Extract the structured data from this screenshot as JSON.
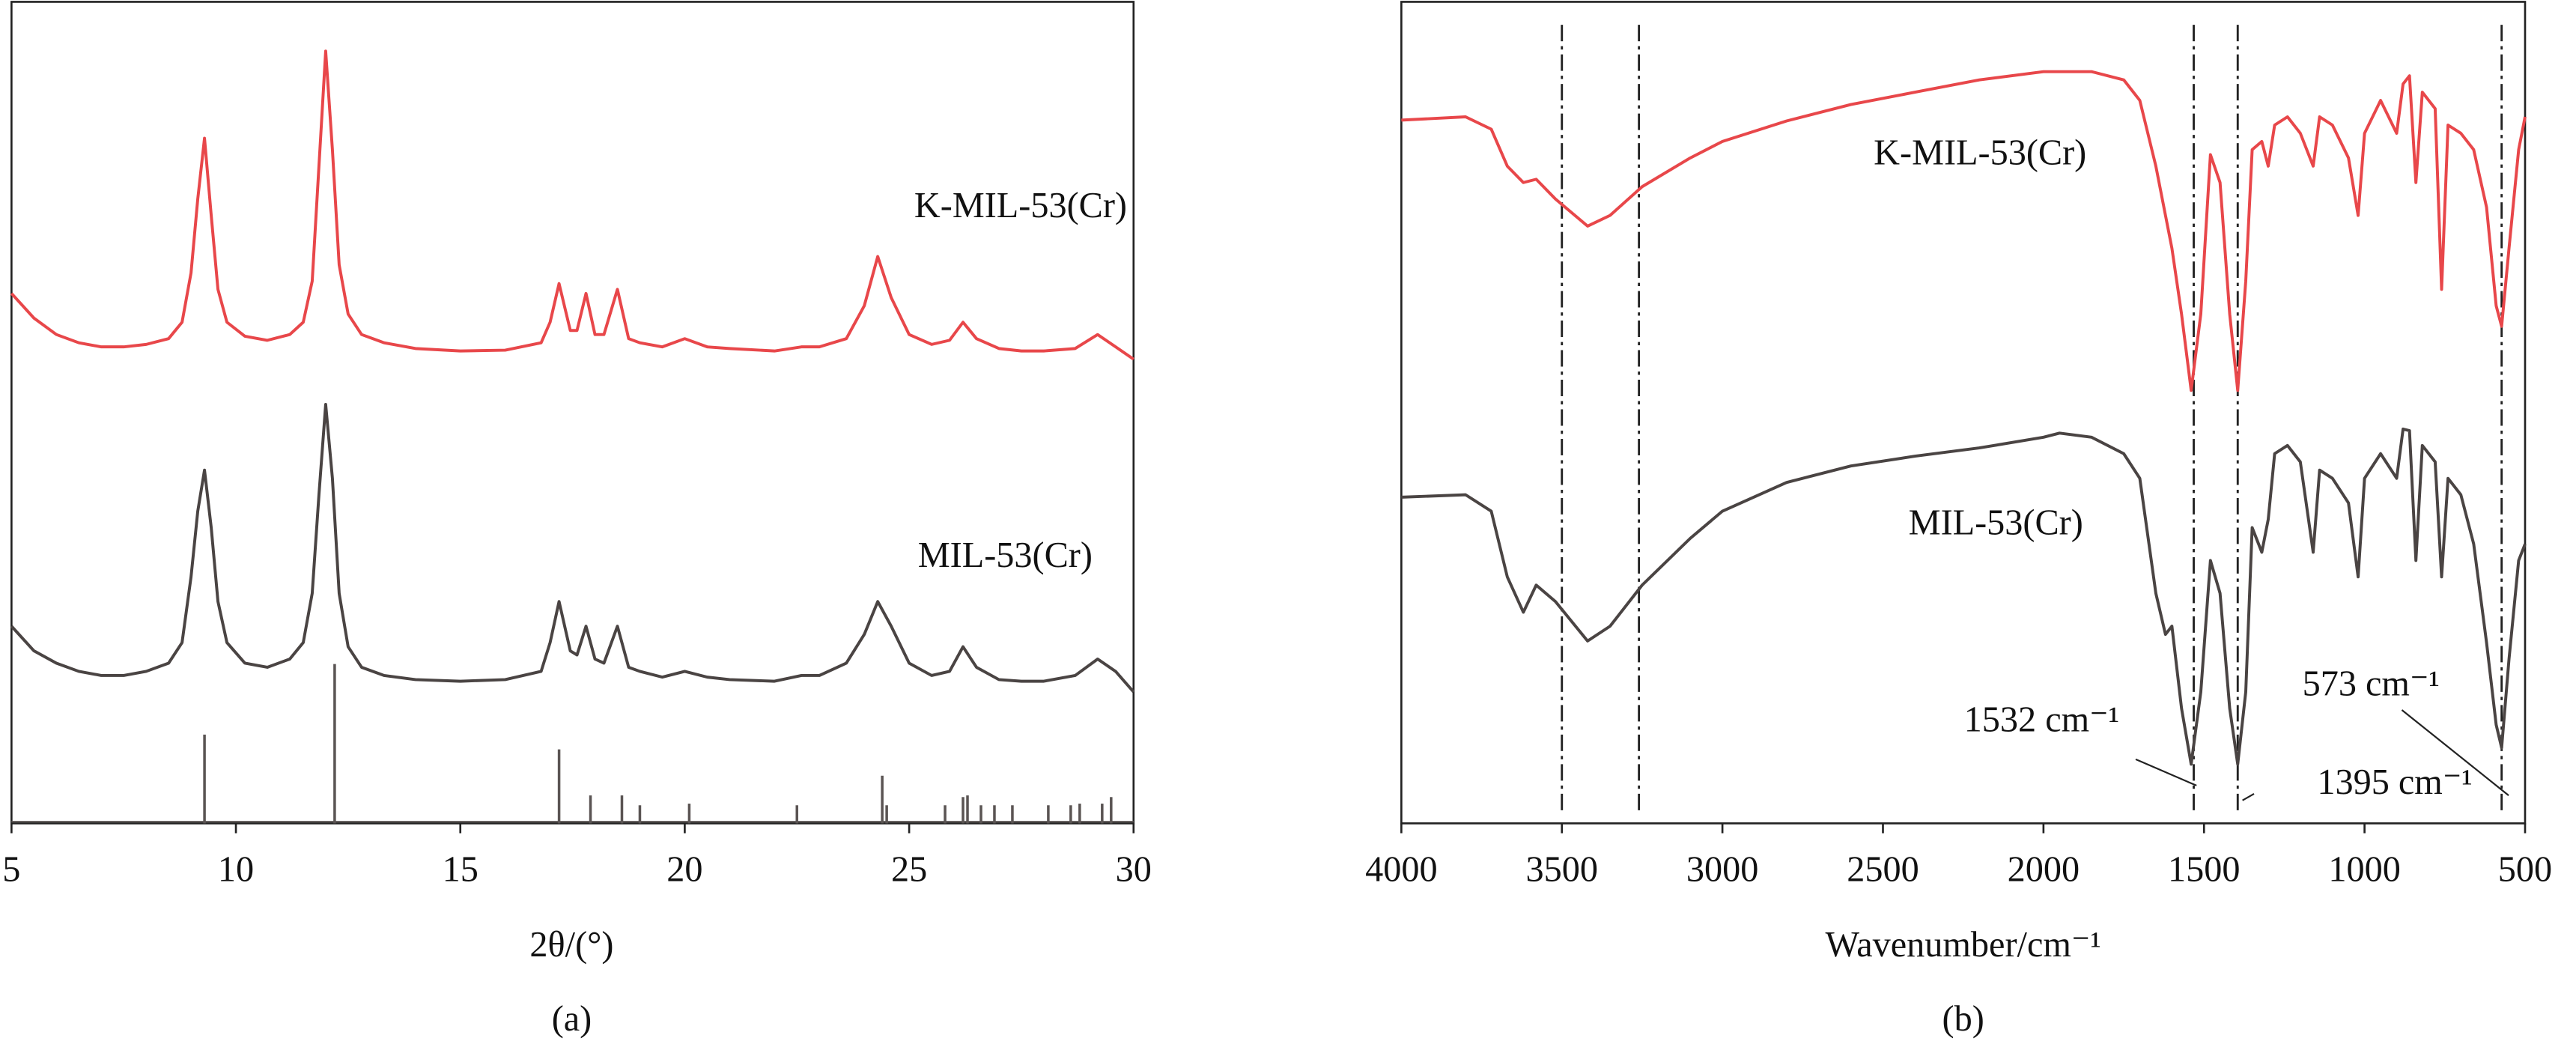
{
  "chart_data": [
    {
      "type": "line",
      "x_label": "2θ/(°)",
      "caption": "(a)",
      "xlim": [
        5,
        30
      ],
      "xticks": [
        5,
        10,
        15,
        20,
        25,
        30
      ],
      "ylim": [
        0,
        100
      ],
      "x": [
        5,
        5.5,
        6,
        6.5,
        7,
        7.5,
        8,
        8.5,
        8.8,
        9.0,
        9.15,
        9.3,
        9.45,
        9.6,
        9.8,
        10.2,
        10.7,
        11.2,
        11.5,
        11.7,
        11.85,
        12.0,
        12.15,
        12.3,
        12.5,
        12.8,
        13.3,
        14,
        15,
        16,
        16.8,
        17.0,
        17.2,
        17.45,
        17.6,
        17.8,
        18.0,
        18.2,
        18.5,
        18.75,
        19,
        19.5,
        20,
        20.5,
        21,
        22,
        22.6,
        23,
        23.6,
        24.0,
        24.3,
        24.6,
        25.0,
        25.5,
        25.9,
        26.2,
        26.5,
        27,
        27.5,
        28,
        28.7,
        29.2,
        29.6,
        30
      ],
      "series": [
        {
          "name": "K-MIL-53(Cr)",
          "color": "#e8474a",
          "values": [
            64.5,
            61.5,
            59.5,
            58.5,
            58,
            58,
            58.3,
            59,
            61,
            67,
            76,
            83.4,
            74,
            65,
            61,
            59.3,
            58.8,
            59.5,
            61,
            66,
            80,
            94,
            82,
            68,
            62,
            59.5,
            58.5,
            57.8,
            57.5,
            57.6,
            58.5,
            61,
            65.7,
            60,
            60,
            64.5,
            59.5,
            59.5,
            65,
            59,
            58.5,
            58,
            59,
            58,
            57.8,
            57.5,
            58,
            58,
            59,
            63,
            69,
            64,
            59.5,
            58.3,
            58.8,
            61,
            59,
            57.8,
            57.5,
            57.5,
            57.8,
            59.5,
            58,
            56.5
          ]
        },
        {
          "name": "MIL-53(Cr)",
          "color": "#4a4443",
          "values": [
            24,
            21,
            19.5,
            18.5,
            18,
            18,
            18.5,
            19.5,
            22,
            30,
            38,
            43,
            36,
            27,
            22,
            19.5,
            19,
            20,
            22,
            28,
            40,
            51,
            42,
            28,
            21.5,
            19,
            18,
            17.5,
            17.3,
            17.5,
            18.5,
            22,
            27,
            21,
            20.5,
            24,
            20,
            19.5,
            24,
            19,
            18.5,
            17.8,
            18.5,
            17.8,
            17.5,
            17.3,
            18,
            18,
            19.5,
            23,
            27,
            24,
            19.5,
            18,
            18.5,
            21.5,
            19,
            17.5,
            17.3,
            17.3,
            18,
            20,
            18.5,
            16
          ]
        }
      ],
      "reference": {
        "color": "#5a5453",
        "x": [
          9.3,
          12.2,
          17.2,
          17.9,
          18.6,
          19.0,
          20.1,
          22.5,
          24.4,
          24.5,
          25.8,
          26.2,
          26.3,
          26.6,
          26.9,
          27.3,
          28.1,
          28.6,
          28.8,
          29.3,
          29.5
        ],
        "values": [
          10.8,
          19.4,
          9,
          3.4,
          3.4,
          2.2,
          2.4,
          2.2,
          5.8,
          2.2,
          2.2,
          3.2,
          3.4,
          2.2,
          2.2,
          2.2,
          2.2,
          2.2,
          2.4,
          2.4,
          3.2
        ]
      }
    },
    {
      "type": "line",
      "x_label": "Wavenumber/cm⁻¹",
      "caption": "(b)",
      "xlim": [
        4000,
        500
      ],
      "xticks": [
        4000,
        3500,
        3000,
        2500,
        2000,
        1500,
        1000,
        500
      ],
      "ylim": [
        0,
        100
      ],
      "x": [
        4000,
        3800,
        3720,
        3670,
        3620,
        3580,
        3520,
        3420,
        3350,
        3250,
        3100,
        3000,
        2800,
        2600,
        2400,
        2200,
        2000,
        1950,
        1850,
        1750,
        1700,
        1650,
        1620,
        1600,
        1570,
        1540,
        1510,
        1480,
        1450,
        1420,
        1395,
        1370,
        1350,
        1320,
        1300,
        1280,
        1240,
        1200,
        1160,
        1140,
        1100,
        1050,
        1020,
        1000,
        950,
        900,
        880,
        860,
        840,
        820,
        780,
        760,
        740,
        700,
        660,
        620,
        590,
        573,
        550,
        520,
        500
      ],
      "series": [
        {
          "name": "K-MIL-53(Cr)",
          "color": "#e8474a",
          "values": [
            85.6,
            86,
            84.5,
            80,
            78,
            78.4,
            76,
            72.7,
            74,
            77.5,
            81,
            83,
            85.5,
            87.5,
            89,
            90.5,
            91.5,
            91.5,
            91.5,
            90.5,
            88,
            80,
            74,
            70,
            62,
            52.7,
            62,
            81.4,
            78,
            62,
            52.7,
            66,
            82,
            83,
            80,
            85,
            86,
            84,
            80,
            86,
            85,
            81,
            74,
            84,
            88,
            84,
            90,
            91,
            78,
            89,
            87,
            65,
            85,
            84,
            82,
            75,
            63,
            60.5,
            70,
            82,
            86
          ]
        },
        {
          "name": "MIL-53(Cr)",
          "color": "#4a4443",
          "values": [
            39.7,
            40,
            38,
            30,
            25.7,
            29,
            27,
            22.2,
            24,
            29,
            34.7,
            38,
            41.5,
            43.5,
            44.7,
            45.7,
            47,
            47.5,
            47,
            45,
            42,
            28,
            23,
            24,
            14,
            7.2,
            16,
            32,
            28,
            14,
            7.2,
            16,
            36,
            33,
            37,
            45,
            46,
            44,
            33,
            43,
            42,
            39,
            30,
            42,
            45,
            42,
            48,
            47.8,
            32,
            46,
            44,
            30,
            42,
            40,
            34,
            22,
            12,
            9.2,
            20,
            32,
            34
          ]
        }
      ],
      "vlines": {
        "color": "#222222",
        "values": [
          3500,
          3260,
          1532,
          1395,
          573
        ],
        "value_labels": [
          null,
          null,
          "1532 cm⁻¹",
          "1395 cm⁻¹",
          "573 cm⁻¹"
        ]
      }
    }
  ]
}
